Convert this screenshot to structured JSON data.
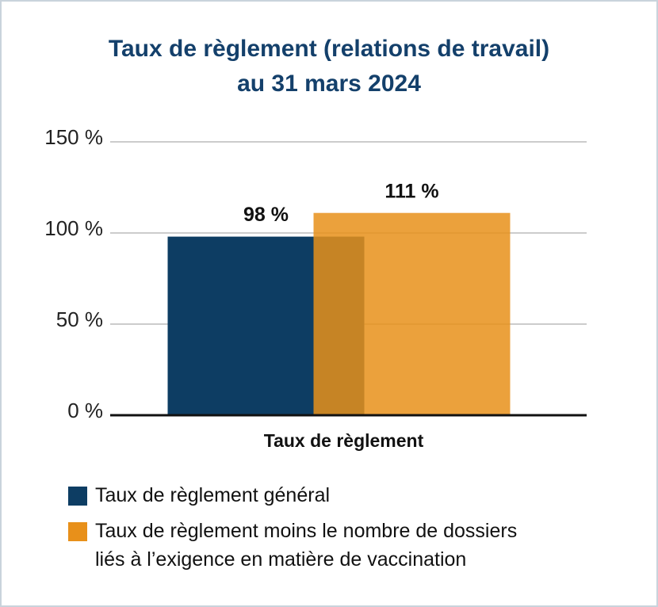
{
  "chart_data": {
    "type": "bar",
    "title": "Taux de règlement (relations de travail)\nau 31 mars 2024",
    "categories": [
      "Taux de règlement"
    ],
    "series": [
      {
        "name": "Taux de règlement général",
        "color": "#0d3d63",
        "values": [
          98
        ],
        "value_labels": [
          "98 %"
        ]
      },
      {
        "name": "Taux de règlement moins le nombre de dossiers\nliés à l’exigence en matière de vaccination",
        "color": "#e8901a",
        "values": [
          111
        ],
        "value_labels": [
          "111 %"
        ]
      }
    ],
    "ylim": [
      0,
      150
    ],
    "yticks": [
      {
        "value": 0,
        "label": "0 %"
      },
      {
        "value": 50,
        "label": "50 %"
      },
      {
        "value": 100,
        "label": "100 %"
      },
      {
        "value": 150,
        "label": "150 %"
      }
    ],
    "grid": true
  }
}
